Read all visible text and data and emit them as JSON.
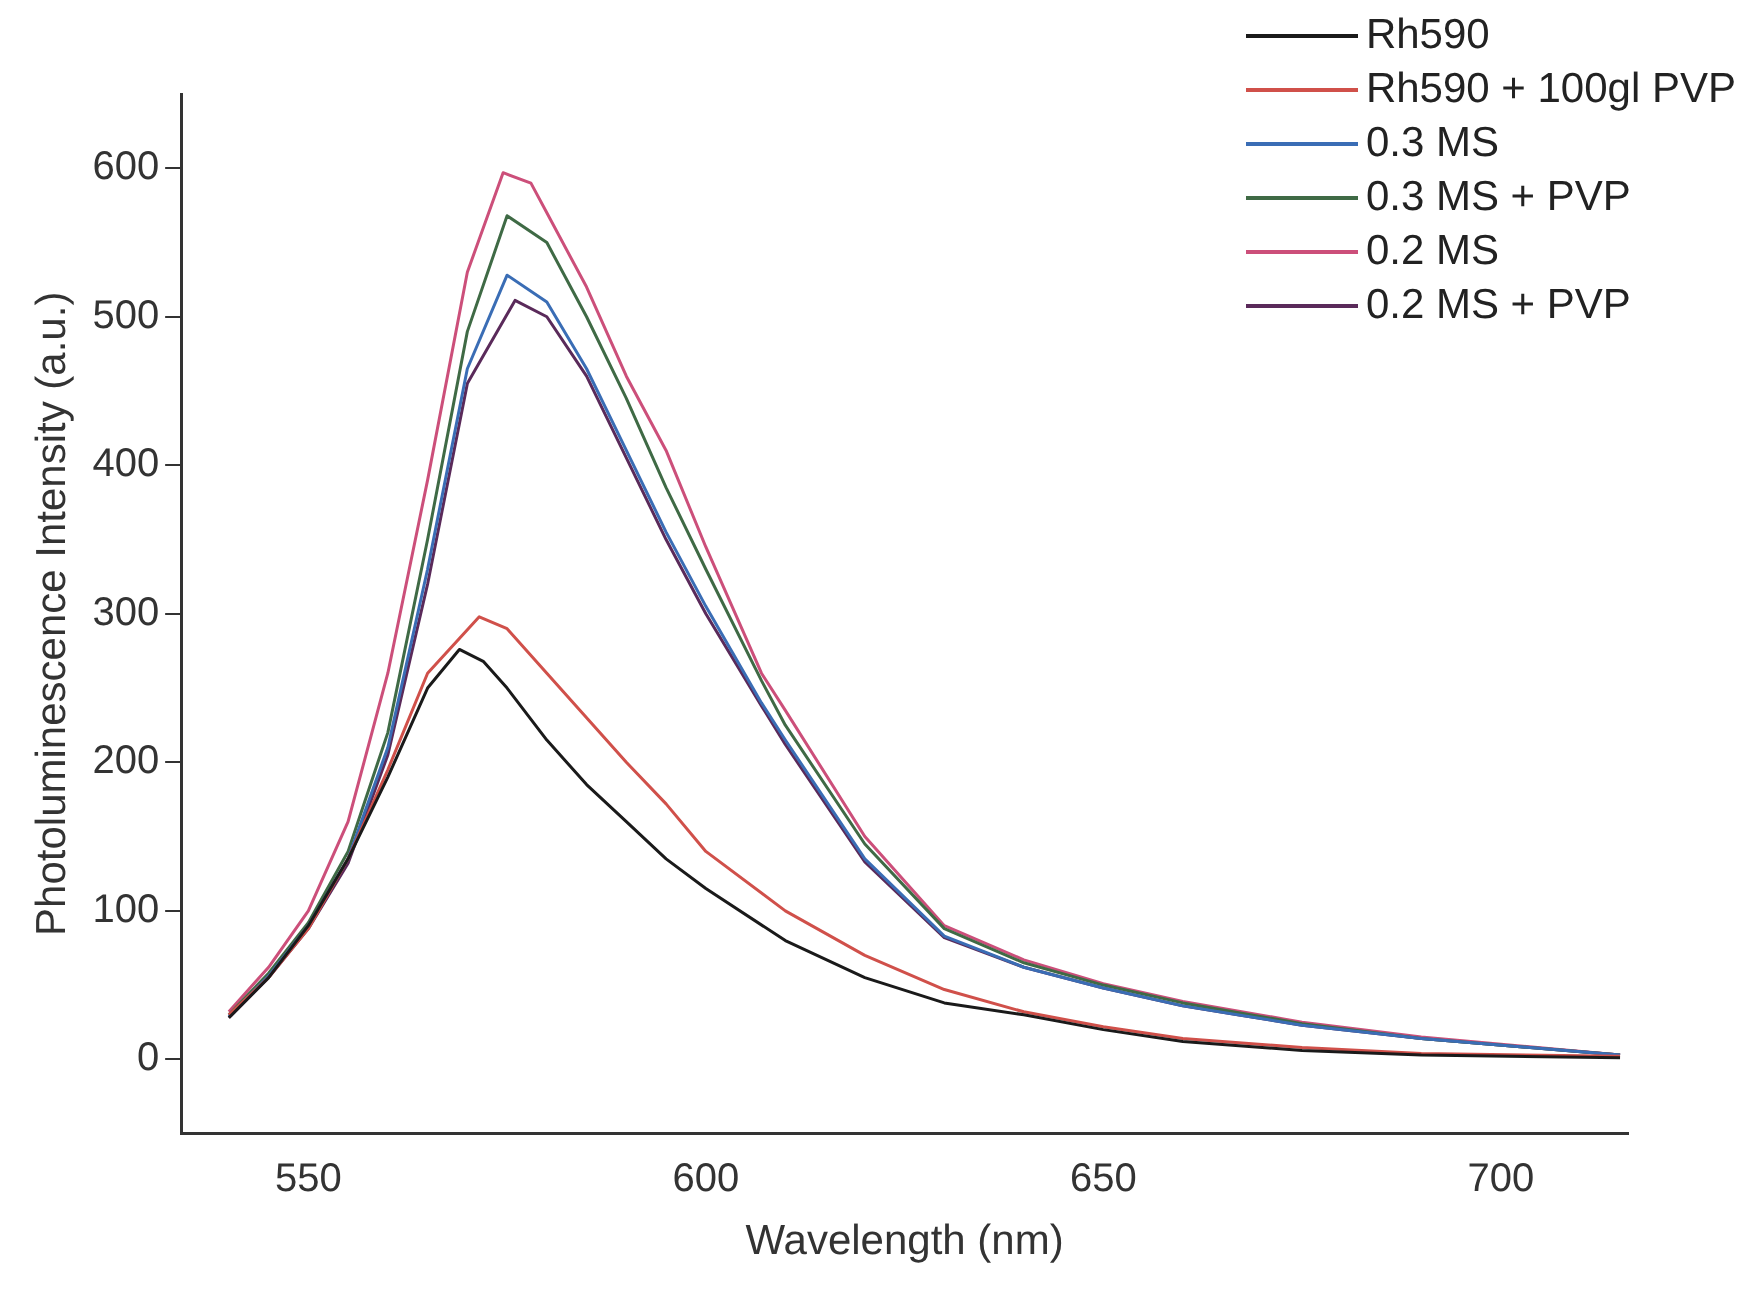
{
  "chart_data": {
    "type": "line",
    "xlabel": "Wavelength (nm)",
    "ylabel": "Photoluminescence Intensity (a.u.)",
    "xlim": [
      534,
      716
    ],
    "xticks": [
      550,
      600,
      650,
      700
    ],
    "ylim": [
      -50,
      650
    ],
    "yticks": [
      0,
      100,
      200,
      300,
      400,
      500,
      600
    ],
    "grid": false,
    "legend": "top right",
    "marker": "none",
    "line_style": "solid",
    "series": [
      {
        "name": "Rh590",
        "color": "#1a1a1a",
        "x": [
          540,
          545,
          550,
          555,
          560,
          565,
          569,
          572,
          575,
          580,
          585,
          590,
          595,
          600,
          610,
          620,
          630,
          640,
          650,
          660,
          675,
          690,
          715
        ],
        "values": [
          28,
          55,
          90,
          135,
          190,
          250,
          276,
          268,
          250,
          215,
          185,
          160,
          135,
          115,
          80,
          55,
          38,
          30,
          20,
          12,
          6,
          3,
          1
        ]
      },
      {
        "name": "Rh590 + 100gl PVP",
        "color": "#d0504a",
        "x": [
          540,
          545,
          550,
          555,
          560,
          565,
          571.5,
          575,
          580,
          585,
          590,
          595,
          600,
          610,
          620,
          630,
          640,
          650,
          660,
          675,
          690,
          715
        ],
        "values": [
          30,
          55,
          88,
          135,
          195,
          260,
          298,
          290,
          260,
          230,
          200,
          172,
          140,
          100,
          70,
          47,
          32,
          22,
          14,
          8,
          4,
          2
        ]
      },
      {
        "name": "0.3 MS",
        "color": "#3a6db5",
        "x": [
          540,
          545,
          550,
          555,
          560,
          565,
          570,
          575,
          580,
          585,
          590,
          595,
          600,
          607,
          610,
          620,
          630,
          640,
          650,
          660,
          675,
          690,
          715
        ],
        "values": [
          29,
          56,
          90,
          135,
          210,
          330,
          465,
          528,
          510,
          465,
          410,
          355,
          305,
          240,
          215,
          135,
          83,
          62,
          48,
          36,
          23,
          14,
          3
        ]
      },
      {
        "name": "0.3 MS + PVP",
        "color": "#3f6a45",
        "x": [
          540,
          545,
          550,
          555,
          560,
          565,
          570,
          575,
          580,
          585,
          590,
          595,
          600,
          607,
          610,
          620,
          630,
          640,
          650,
          660,
          675,
          690,
          715
        ],
        "values": [
          30,
          58,
          92,
          140,
          220,
          350,
          490,
          568,
          550,
          500,
          445,
          385,
          330,
          255,
          225,
          145,
          88,
          65,
          50,
          38,
          24,
          14,
          3
        ]
      },
      {
        "name": "0.2 MS",
        "color": "#cc4f7a",
        "x": [
          540,
          545,
          550,
          555,
          560,
          565,
          570,
          574.5,
          578,
          580,
          585,
          590,
          595,
          600,
          607,
          610,
          620,
          630,
          640,
          650,
          660,
          675,
          690,
          715
        ],
        "values": [
          32,
          62,
          100,
          160,
          260,
          390,
          530,
          597,
          590,
          570,
          520,
          460,
          410,
          345,
          260,
          235,
          150,
          90,
          67,
          51,
          39,
          25,
          15,
          3
        ]
      },
      {
        "name": "0.2 MS + PVP",
        "color": "#5a2a5a",
        "x": [
          540,
          545,
          550,
          555,
          560,
          565,
          570,
          576,
          580,
          585,
          590,
          595,
          600,
          607,
          610,
          620,
          630,
          640,
          650,
          660,
          675,
          690,
          715
        ],
        "values": [
          28,
          55,
          88,
          132,
          205,
          320,
          455,
          511,
          500,
          460,
          405,
          350,
          300,
          238,
          212,
          133,
          82,
          62,
          48,
          36,
          23,
          14,
          3
        ]
      }
    ]
  }
}
